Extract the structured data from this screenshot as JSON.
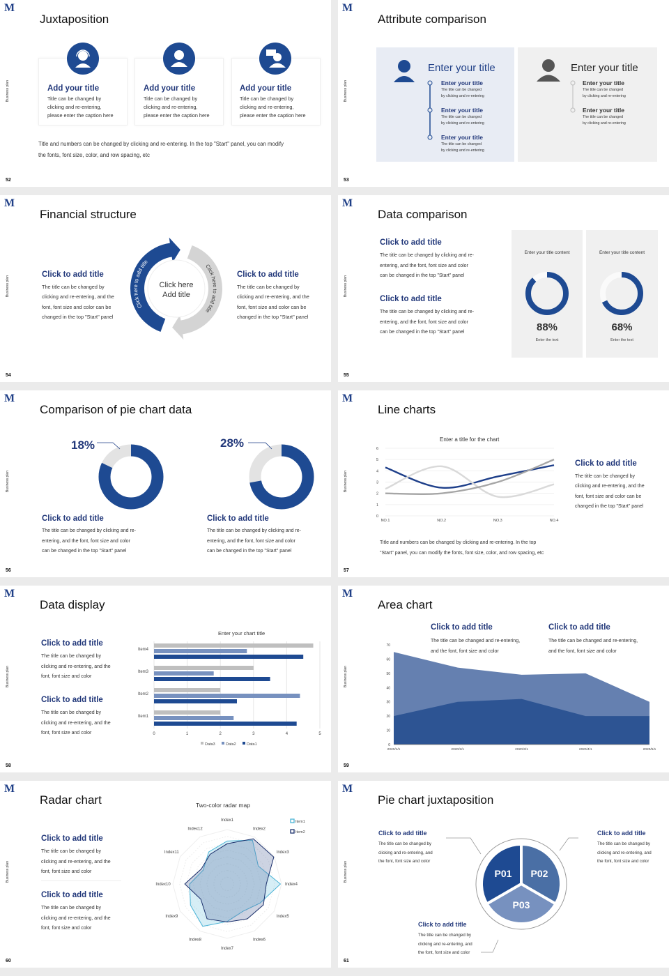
{
  "brand": {
    "logo": "M",
    "side_label": "Business plan"
  },
  "colors": {
    "navy": "#1e4a92",
    "mid_blue": "#4a6fa5",
    "light_blue": "#7791bf",
    "gray": "#d0d0d0",
    "panel_blue": "#e8ecf4",
    "panel_gray": "#f0f0f0"
  },
  "slides": [
    {
      "page": "52",
      "title": "Juxtaposition",
      "cards": [
        {
          "icon": "headset-person-icon",
          "title": "Add your title",
          "lines": [
            "Title can be changed by",
            "clicking and re-entering,",
            "please enter the caption here"
          ]
        },
        {
          "icon": "person-icon",
          "title": "Add your title",
          "lines": [
            "Title can be changed by",
            "clicking and re-entering,",
            "please enter the caption here"
          ]
        },
        {
          "icon": "person-chat-icon",
          "title": "Add your title",
          "lines": [
            "Title can be changed by",
            "clicking and re-entering,",
            "please enter the caption here"
          ]
        }
      ],
      "note_lines": [
        "Title and numbers can be changed by clicking and re-entering. In the top \"Start\" panel, you can modify",
        "the fonts, font size, color, and row spacing, etc"
      ]
    },
    {
      "page": "53",
      "title": "Attribute comparison",
      "left": {
        "heading": "Enter your title",
        "items": [
          {
            "title": "Enter your title",
            "lines": [
              "The title can be changed",
              "by clicking and re-entering"
            ]
          },
          {
            "title": "Enter your title",
            "lines": [
              "The title can be changed",
              "by clicking and re-entering"
            ]
          },
          {
            "title": "Enter your title",
            "lines": [
              "The title can be changed",
              "by clicking and re-entering"
            ]
          }
        ]
      },
      "right": {
        "heading": "Enter your title",
        "items": [
          {
            "title": "Enter your title",
            "lines": [
              "The title can be changed",
              "by clicking and re-entering"
            ]
          },
          {
            "title": "Enter your title",
            "lines": [
              "The title can be changed",
              "by clicking and re-entering"
            ]
          }
        ]
      }
    },
    {
      "page": "54",
      "title": "Financial structure",
      "left": {
        "title": "Click to add title",
        "lines": [
          "The title can be changed by",
          "clicking and re-entering, and the",
          "font, font size and color can be",
          "changed in the top \"Start\" panel"
        ]
      },
      "right": {
        "title": "Click to add title",
        "lines": [
          "The title can be changed by",
          "clicking and re-entering, and the",
          "font, font size and color can be",
          "changed in the top \"Start\" panel"
        ]
      },
      "center_lines": [
        "Click here",
        "Add title"
      ],
      "arc_left": "Click here to add title",
      "arc_right": "Click here to add title"
    },
    {
      "page": "55",
      "title": "Data comparison",
      "blocks": [
        {
          "title": "Click to add title",
          "lines": [
            "The title can be changed by clicking and re-",
            "entering, and the font, font size and color",
            "can be changed in the top \"Start\" panel"
          ]
        },
        {
          "title": "Click to add title",
          "lines": [
            "The title can be changed by clicking and re-",
            "entering, and the font, font size and color",
            "can be changed in the top \"Start\" panel"
          ]
        }
      ],
      "cards": [
        {
          "title": "Enter your title content",
          "value": 88,
          "label": "88%",
          "caption": "Enter the text"
        },
        {
          "title": "Enter your title content",
          "value": 68,
          "label": "68%",
          "caption": "Enter the text"
        }
      ]
    },
    {
      "page": "56",
      "title": "Comparison of pie chart data",
      "pies": [
        {
          "value": 18,
          "label": "18%",
          "title": "Click to add title",
          "lines": [
            "The title can be changed by clicking and re-",
            "entering, and the font, font size and color",
            "can be changed in the top \"Start\" panel"
          ]
        },
        {
          "value": 28,
          "label": "28%",
          "title": "Click to add title",
          "lines": [
            "The title can be changed by clicking and re-",
            "entering, and the font, font size and color",
            "can be changed in the top \"Start\" panel"
          ]
        }
      ]
    },
    {
      "page": "57",
      "title": "Line charts",
      "block": {
        "title": "Click to add title",
        "lines": [
          "The title can be changed by",
          "clicking and re-entering, and the",
          "font, font size and color can be",
          "changed in the top \"Start\" panel"
        ]
      },
      "note_lines": [
        "Title and numbers can be changed by clicking and re-entering. In the top",
        "\"Start\" panel, you can modify the fonts, font size, color, and row spacing, etc"
      ]
    },
    {
      "page": "58",
      "title": "Data display",
      "blocks": [
        {
          "title": "Click to add title",
          "lines": [
            "The title can be changed by",
            "clicking and re-entering, and the",
            "font, font size and color"
          ]
        },
        {
          "title": "Click to add title",
          "lines": [
            "The title can be changed by",
            "clicking and re-entering, and the",
            "font, font size and color"
          ]
        }
      ]
    },
    {
      "page": "59",
      "title": "Area chart",
      "blocks": [
        {
          "title": "Click to add title",
          "lines": [
            "The title can be changed and re-entering,",
            "and the font, font size and color"
          ]
        },
        {
          "title": "Click to add title",
          "lines": [
            "The title can be changed and re-entering,",
            "and the font, font size and color"
          ]
        }
      ]
    },
    {
      "page": "60",
      "title": "Radar chart",
      "blocks": [
        {
          "title": "Click to add title",
          "lines": [
            "The title can be changed by",
            "clicking and re-entering, and the",
            "font, font size and color"
          ]
        },
        {
          "title": "Click to add title",
          "lines": [
            "The title can be changed by",
            "clicking and re-entering, and the",
            "font, font size and color"
          ]
        }
      ]
    },
    {
      "page": "61",
      "title": "Pie chart juxtaposition",
      "segments": [
        "P01",
        "P02",
        "P03"
      ],
      "blocks": [
        {
          "title": "Click to add title",
          "lines": [
            "The title can be changed by",
            "clicking and re-entering, and",
            "the font, font size and color"
          ]
        },
        {
          "title": "Click to add title",
          "lines": [
            "The title can be changed by",
            "clicking and re-entering, and",
            "the font, font size and color"
          ]
        },
        {
          "title": "Click to add title",
          "lines": [
            "The title can be changed by",
            "clicking and re-entering, and",
            "the font, font size and color"
          ]
        }
      ]
    }
  ],
  "chart_data": [
    {
      "type": "line",
      "title": "Enter a title for the chart",
      "categories": [
        "NO.1",
        "NO.2",
        "NO.3",
        "NO.4"
      ],
      "ylim": [
        0,
        6
      ],
      "yticks": [
        0,
        1,
        2,
        3,
        4,
        5,
        6
      ],
      "grid": true,
      "legend": "none",
      "series": [
        {
          "values": [
            4.3,
            2.5,
            3.5,
            4.5
          ],
          "color": "#1e3f8a"
        },
        {
          "values": [
            2.4,
            4.4,
            1.7,
            2.8
          ],
          "color": "#d9d9d9"
        },
        {
          "values": [
            2.0,
            2.0,
            3.0,
            5.0
          ],
          "color": "#a6a6a6"
        }
      ]
    },
    {
      "type": "bar",
      "orientation": "horizontal",
      "title": "Enter your chart title",
      "categories": [
        "Item1",
        "Item2",
        "Item3",
        "Item4"
      ],
      "xlim": [
        0,
        5
      ],
      "xticks": [
        0,
        1,
        2,
        3,
        4,
        5
      ],
      "grid": true,
      "legend": "bottom",
      "series": [
        {
          "name": "Data1",
          "values": [
            4.3,
            2.5,
            3.5,
            4.5
          ],
          "color": "#1e4a92"
        },
        {
          "name": "Data2",
          "values": [
            2.4,
            4.4,
            1.8,
            2.8
          ],
          "color": "#7791bf"
        },
        {
          "name": "Data3",
          "values": [
            2.0,
            2.0,
            3.0,
            4.8
          ],
          "color": "#bfbfbf"
        }
      ]
    },
    {
      "type": "area",
      "categories": [
        "2020/1/1",
        "2020/2/1",
        "2020/3/1",
        "2020/4/1",
        "2020/5/1"
      ],
      "ylim": [
        0,
        70
      ],
      "yticks": [
        0,
        10,
        20,
        30,
        40,
        50,
        60,
        70
      ],
      "grid": false,
      "legend": "none",
      "series": [
        {
          "values": [
            65,
            54,
            49,
            50,
            30
          ],
          "color": "#6580b0"
        },
        {
          "values": [
            20,
            30,
            32,
            20,
            20
          ],
          "color": "#2d5493"
        }
      ]
    },
    {
      "type": "radar",
      "title": "Two-color radar map",
      "categories": [
        "Index1",
        "Index2",
        "Index3",
        "Index4",
        "Index5",
        "Index6",
        "Index7",
        "Index8",
        "Index9",
        "Index10",
        "Index11",
        "Index12"
      ],
      "range": [
        0,
        100
      ],
      "legend": "top-right",
      "series": [
        {
          "name": "Item1",
          "values": [
            79,
            93,
            66,
            98,
            70,
            58,
            69,
            90,
            78,
            69,
            51,
            68
          ],
          "color": "#4bb3d6"
        },
        {
          "name": "Item2",
          "values": [
            74,
            96,
            99,
            72,
            77,
            74,
            70,
            74,
            56,
            78,
            55,
            63
          ],
          "color": "#1a2f6b"
        }
      ]
    }
  ]
}
